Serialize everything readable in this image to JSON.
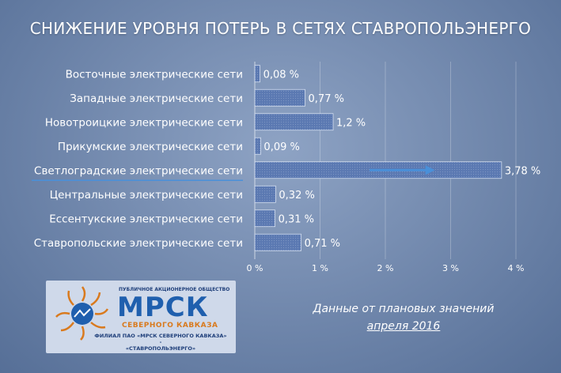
{
  "title": "СНИЖЕНИЕ УРОВНЯ ПОТЕРЬ В СЕТЯХ СТАВРОПОЛЬЭНЕРГО",
  "note": {
    "line1": "Данные от плановых значений",
    "line2": "апреля 2016"
  },
  "logo": {
    "top_text": "ПУБЛИЧНОЕ АКЦИОНЕРНОЕ ОБЩЕСТВО",
    "main_text": "МРСК",
    "sub_text": "СЕВЕРНОГО КАВКАЗА",
    "branch_line1": "ФИЛИАЛ ПАО «МРСК СЕВЕРНОГО КАВКАЗА» -",
    "branch_line2": "«СТАВРОПОЛЬЭНЕРГО»"
  },
  "colors": {
    "bar_fill": "#5b79b2",
    "arrow": "#4a90d9",
    "highlight_underline": "#4a90d9",
    "logo_blue": "#1f5fae",
    "logo_orange": "#d97a1e"
  },
  "chart_data": {
    "type": "bar",
    "orientation": "horizontal",
    "categories": [
      "Восточные электрические сети",
      "Западные электрические сети",
      "Новотроицкие электрические сети",
      "Прикумские электрические сети",
      "Светлоградские электрические сети",
      "Центральные электрические сети",
      "Ессентукские электрические сети",
      "Ставропольские электрические сети"
    ],
    "values": [
      0.08,
      0.77,
      1.2,
      0.09,
      3.78,
      0.32,
      0.31,
      0.71
    ],
    "value_labels": [
      "0,08 %",
      "0,77 %",
      "1,2 %",
      "0,09 %",
      "3,78 %",
      "0,32 %",
      "0,31 %",
      "0,71 %"
    ],
    "highlighted_category": "Светлоградские электрические сети",
    "xlim": [
      0,
      4
    ],
    "xticks": [
      0,
      1,
      2,
      3,
      4
    ],
    "xtick_labels": [
      "0 %",
      "1 %",
      "2 %",
      "3 %",
      "4 %"
    ],
    "grid": true
  }
}
